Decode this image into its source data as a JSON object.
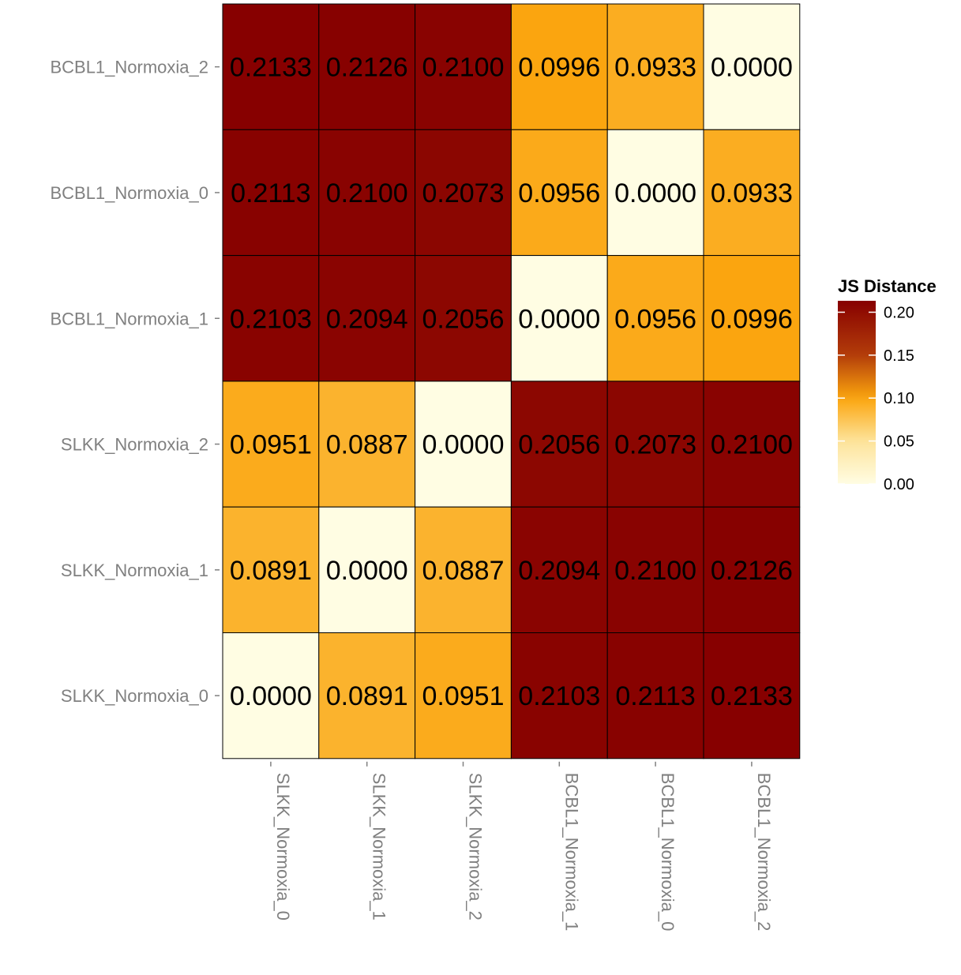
{
  "chart_data": {
    "type": "heatmap",
    "title": "",
    "xlabel": "",
    "ylabel": "",
    "x_categories": [
      "SLKK_Normoxia_0",
      "SLKK_Normoxia_1",
      "SLKK_Normoxia_2",
      "BCBL1_Normoxia_1",
      "BCBL1_Normoxia_0",
      "BCBL1_Normoxia_2"
    ],
    "y_categories_top_to_bottom": [
      "BCBL1_Normoxia_2",
      "BCBL1_Normoxia_0",
      "BCBL1_Normoxia_1",
      "SLKK_Normoxia_2",
      "SLKK_Normoxia_1",
      "SLKK_Normoxia_0"
    ],
    "values": [
      [
        0.2133,
        0.2126,
        0.21,
        0.0996,
        0.0933,
        0.0
      ],
      [
        0.2113,
        0.21,
        0.2073,
        0.0956,
        0.0,
        0.0933
      ],
      [
        0.2103,
        0.2094,
        0.2056,
        0.0,
        0.0956,
        0.0996
      ],
      [
        0.0951,
        0.0887,
        0.0,
        0.2056,
        0.2073,
        0.21
      ],
      [
        0.0891,
        0.0,
        0.0887,
        0.2094,
        0.21,
        0.2126
      ],
      [
        0.0,
        0.0891,
        0.0951,
        0.2103,
        0.2113,
        0.2133
      ]
    ],
    "cell_labels": [
      [
        "0.2133",
        "0.2126",
        "0.2100",
        "0.0996",
        "0.0933",
        "0.0000"
      ],
      [
        "0.2113",
        "0.2100",
        "0.2073",
        "0.0956",
        "0.0000",
        "0.0933"
      ],
      [
        "0.2103",
        "0.2094",
        "0.2056",
        "0.0000",
        "0.0956",
        "0.0996"
      ],
      [
        "0.0951",
        "0.0887",
        "0.0000",
        "0.2056",
        "0.2073",
        "0.2100"
      ],
      [
        "0.0891",
        "0.0000",
        "0.0887",
        "0.2094",
        "0.2100",
        "0.2126"
      ],
      [
        "0.0000",
        "0.0891",
        "0.0951",
        "0.2103",
        "0.2113",
        "0.2133"
      ]
    ],
    "color_scale": {
      "stops": [
        {
          "value": 0.0,
          "color": "#fffde3"
        },
        {
          "value": 0.05,
          "color": "#fde39a"
        },
        {
          "value": 0.1,
          "color": "#fba50e"
        },
        {
          "value": 0.15,
          "color": "#b33d0a"
        },
        {
          "value": 0.2133,
          "color": "#870000"
        }
      ],
      "domain": [
        0.0,
        0.2133
      ]
    },
    "legend": {
      "title": "JS Distance",
      "placement": "right",
      "tick_values": [
        0.0,
        0.05,
        0.1,
        0.15,
        0.2
      ],
      "tick_labels": [
        "0.00",
        "0.05",
        "0.10",
        "0.15",
        "0.20"
      ]
    },
    "grid": false,
    "cell_border_color": "#000000",
    "axis_text_color": "#808080"
  }
}
